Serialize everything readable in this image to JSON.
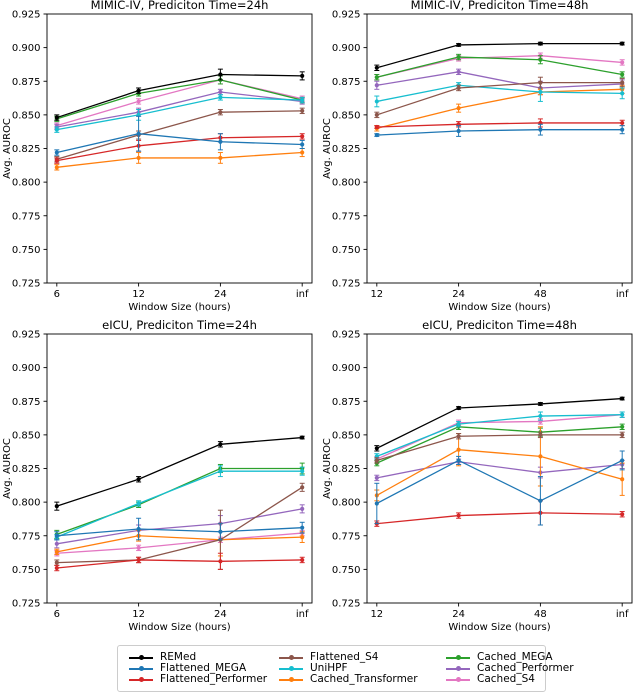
{
  "figure": {
    "ylabel": "Avg. AUROC",
    "xlabel": "Window Size (hours)",
    "ylim": [
      0.725,
      0.925
    ],
    "ytick_labels": [
      "0.725",
      "0.750",
      "0.775",
      "0.800",
      "0.825",
      "0.850",
      "0.875",
      "0.900",
      "0.925"
    ]
  },
  "colors": {
    "REMed": "#000000",
    "Flattened_MEGA": "#1f77b4",
    "Flattened_Performer": "#d62728",
    "Flattened_S4": "#8c564b",
    "UniHPF": "#17becf",
    "Cached_Transformer": "#ff7f0e",
    "Cached_MEGA": "#2ca02c",
    "Cached_Performer": "#9467bd",
    "Cached_S4": "#e377c2"
  },
  "chart_data": [
    {
      "type": "line",
      "title": "MIMIC-IV, Prediciton Time=24h",
      "xlabel": "Window Size (hours)",
      "ylabel": "Avg. AUROC",
      "ylim": [
        0.725,
        0.925
      ],
      "categories": [
        "6",
        "12",
        "24",
        "inf"
      ],
      "series": [
        {
          "name": "REMed",
          "color": "#000000",
          "values": [
            0.848,
            0.868,
            0.88,
            0.879
          ],
          "errors": [
            0.002,
            0.002,
            0.004,
            0.003
          ]
        },
        {
          "name": "Flattened_MEGA",
          "color": "#1f77b4",
          "values": [
            0.822,
            0.836,
            0.83,
            0.828
          ],
          "errors": [
            0.002,
            0.013,
            0.006,
            0.003
          ]
        },
        {
          "name": "Flattened_Performer",
          "color": "#d62728",
          "values": [
            0.816,
            0.827,
            0.833,
            0.834
          ],
          "errors": [
            0.002,
            0.004,
            0.003,
            0.002
          ]
        },
        {
          "name": "Flattened_S4",
          "color": "#8c564b",
          "values": [
            0.817,
            0.835,
            0.852,
            0.853
          ],
          "errors": [
            0.002,
            0.003,
            0.002,
            0.002
          ]
        },
        {
          "name": "UniHPF",
          "color": "#17becf",
          "values": [
            0.839,
            0.85,
            0.863,
            0.861
          ],
          "errors": [
            0.002,
            0.004,
            0.002,
            0.002
          ]
        },
        {
          "name": "Cached_Transformer",
          "color": "#ff7f0e",
          "values": [
            0.811,
            0.818,
            0.818,
            0.822
          ],
          "errors": [
            0.002,
            0.004,
            0.004,
            0.003
          ]
        },
        {
          "name": "Cached_MEGA",
          "color": "#2ca02c",
          "values": [
            0.847,
            0.866,
            0.876,
            0.861
          ],
          "errors": [
            0.002,
            0.002,
            0.003,
            0.002
          ]
        },
        {
          "name": "Cached_Performer",
          "color": "#9467bd",
          "values": [
            0.841,
            0.852,
            0.867,
            0.86
          ],
          "errors": [
            0.002,
            0.003,
            0.002,
            0.002
          ]
        },
        {
          "name": "Cached_S4",
          "color": "#e377c2",
          "values": [
            0.842,
            0.86,
            0.876,
            0.862
          ],
          "errors": [
            0.002,
            0.002,
            0.003,
            0.002
          ]
        }
      ]
    },
    {
      "type": "line",
      "title": "MIMIC-IV, Prediciton Time=48h",
      "xlabel": "Window Size (hours)",
      "ylabel": "Avg. AUROC",
      "ylim": [
        0.725,
        0.925
      ],
      "categories": [
        "12",
        "24",
        "48",
        "inf"
      ],
      "series": [
        {
          "name": "REMed",
          "color": "#000000",
          "values": [
            0.885,
            0.902,
            0.903,
            0.903
          ],
          "errors": [
            0.002,
            0.001,
            0.001,
            0.001
          ]
        },
        {
          "name": "Flattened_MEGA",
          "color": "#1f77b4",
          "values": [
            0.835,
            0.838,
            0.839,
            0.839
          ],
          "errors": [
            0.001,
            0.004,
            0.004,
            0.003
          ]
        },
        {
          "name": "Flattened_Performer",
          "color": "#d62728",
          "values": [
            0.841,
            0.843,
            0.844,
            0.844
          ],
          "errors": [
            0.001,
            0.002,
            0.003,
            0.002
          ]
        },
        {
          "name": "Flattened_S4",
          "color": "#8c564b",
          "values": [
            0.85,
            0.87,
            0.874,
            0.874
          ],
          "errors": [
            0.002,
            0.002,
            0.004,
            0.003
          ]
        },
        {
          "name": "UniHPF",
          "color": "#17becf",
          "values": [
            0.86,
            0.872,
            0.867,
            0.866
          ],
          "errors": [
            0.004,
            0.002,
            0.007,
            0.004
          ]
        },
        {
          "name": "Cached_Transformer",
          "color": "#ff7f0e",
          "values": [
            0.84,
            0.855,
            0.867,
            0.869
          ],
          "errors": [
            0.002,
            0.003,
            0.002,
            0.003
          ]
        },
        {
          "name": "Cached_MEGA",
          "color": "#2ca02c",
          "values": [
            0.878,
            0.893,
            0.891,
            0.88
          ],
          "errors": [
            0.002,
            0.002,
            0.003,
            0.002
          ]
        },
        {
          "name": "Cached_Performer",
          "color": "#9467bd",
          "values": [
            0.872,
            0.882,
            0.87,
            0.873
          ],
          "errors": [
            0.003,
            0.002,
            0.005,
            0.003
          ]
        },
        {
          "name": "Cached_S4",
          "color": "#e377c2",
          "values": [
            0.878,
            0.892,
            0.894,
            0.889
          ],
          "errors": [
            0.002,
            0.002,
            0.002,
            0.002
          ]
        }
      ]
    },
    {
      "type": "line",
      "title": "eICU, Prediciton Time=24h",
      "xlabel": "Window Size (hours)",
      "ylabel": "Avg. AUROC",
      "ylim": [
        0.725,
        0.925
      ],
      "categories": [
        "6",
        "12",
        "24",
        "inf"
      ],
      "series": [
        {
          "name": "REMed",
          "color": "#000000",
          "values": [
            0.797,
            0.817,
            0.843,
            0.848
          ],
          "errors": [
            0.003,
            0.002,
            0.002,
            0.001
          ]
        },
        {
          "name": "Flattened_MEGA",
          "color": "#1f77b4",
          "values": [
            0.775,
            0.78,
            0.778,
            0.781
          ],
          "errors": [
            0.003,
            0.008,
            0.006,
            0.004
          ]
        },
        {
          "name": "Flattened_Performer",
          "color": "#d62728",
          "values": [
            0.751,
            0.757,
            0.756,
            0.757
          ],
          "errors": [
            0.002,
            0.002,
            0.006,
            0.002
          ]
        },
        {
          "name": "Flattened_S4",
          "color": "#8c564b",
          "values": [
            0.755,
            0.757,
            0.772,
            0.811
          ],
          "errors": [
            0.002,
            0.002,
            0.022,
            0.003
          ]
        },
        {
          "name": "UniHPF",
          "color": "#17becf",
          "values": [
            0.774,
            0.799,
            0.823,
            0.823
          ],
          "errors": [
            0.002,
            0.002,
            0.004,
            0.003
          ]
        },
        {
          "name": "Cached_Transformer",
          "color": "#ff7f0e",
          "values": [
            0.763,
            0.775,
            0.772,
            0.774
          ],
          "errors": [
            0.002,
            0.004,
            0.012,
            0.004
          ]
        },
        {
          "name": "Cached_MEGA",
          "color": "#2ca02c",
          "values": [
            0.776,
            0.798,
            0.825,
            0.825
          ],
          "errors": [
            0.003,
            0.002,
            0.003,
            0.004
          ]
        },
        {
          "name": "Cached_Performer",
          "color": "#9467bd",
          "values": [
            0.769,
            0.779,
            0.784,
            0.795
          ],
          "errors": [
            0.003,
            0.004,
            0.006,
            0.003
          ]
        },
        {
          "name": "Cached_S4",
          "color": "#e377c2",
          "values": [
            0.762,
            0.766,
            0.772,
            0.777
          ],
          "errors": [
            0.002,
            0.002,
            0.002,
            0.002
          ]
        }
      ]
    },
    {
      "type": "line",
      "title": "eICU, Prediciton Time=48h",
      "xlabel": "Window Size (hours)",
      "ylabel": "Avg. AUROC",
      "ylim": [
        0.725,
        0.925
      ],
      "categories": [
        "12",
        "24",
        "48",
        "inf"
      ],
      "series": [
        {
          "name": "REMed",
          "color": "#000000",
          "values": [
            0.84,
            0.87,
            0.873,
            0.877
          ],
          "errors": [
            0.002,
            0.001,
            0.001,
            0.001
          ]
        },
        {
          "name": "Flattened_MEGA",
          "color": "#1f77b4",
          "values": [
            0.799,
            0.831,
            0.801,
            0.831
          ],
          "errors": [
            0.015,
            0.003,
            0.018,
            0.007
          ]
        },
        {
          "name": "Flattened_Performer",
          "color": "#d62728",
          "values": [
            0.784,
            0.79,
            0.792,
            0.791
          ],
          "errors": [
            0.002,
            0.002,
            0.009,
            0.002
          ]
        },
        {
          "name": "Flattened_S4",
          "color": "#8c564b",
          "values": [
            0.831,
            0.849,
            0.85,
            0.85
          ],
          "errors": [
            0.002,
            0.002,
            0.002,
            0.002
          ]
        },
        {
          "name": "UniHPF",
          "color": "#17becf",
          "values": [
            0.834,
            0.858,
            0.864,
            0.865
          ],
          "errors": [
            0.002,
            0.002,
            0.003,
            0.002
          ]
        },
        {
          "name": "Cached_Transformer",
          "color": "#ff7f0e",
          "values": [
            0.805,
            0.839,
            0.834,
            0.817
          ],
          "errors": [
            0.004,
            0.012,
            0.022,
            0.012
          ]
        },
        {
          "name": "Cached_MEGA",
          "color": "#2ca02c",
          "values": [
            0.829,
            0.856,
            0.852,
            0.856
          ],
          "errors": [
            0.002,
            0.002,
            0.003,
            0.002
          ]
        },
        {
          "name": "Cached_Performer",
          "color": "#9467bd",
          "values": [
            0.818,
            0.83,
            0.822,
            0.828
          ],
          "errors": [
            0.002,
            0.002,
            0.004,
            0.003
          ]
        },
        {
          "name": "Cached_S4",
          "color": "#e377c2",
          "values": [
            0.832,
            0.859,
            0.86,
            0.865
          ],
          "errors": [
            0.002,
            0.002,
            0.002,
            0.002
          ]
        }
      ]
    }
  ],
  "legend": {
    "rows": [
      [
        {
          "label": "REMed",
          "color": "#000000"
        },
        {
          "label": "Flattened_S4",
          "color": "#8c564b"
        },
        {
          "label": "Cached_MEGA",
          "color": "#2ca02c"
        }
      ],
      [
        {
          "label": "Flattened_MEGA",
          "color": "#1f77b4"
        },
        {
          "label": "UniHPF",
          "color": "#17becf"
        },
        {
          "label": "Cached_Performer",
          "color": "#9467bd"
        }
      ],
      [
        {
          "label": "Flattened_Performer",
          "color": "#d62728"
        },
        {
          "label": "Cached_Transformer",
          "color": "#ff7f0e"
        },
        {
          "label": "Cached_S4",
          "color": "#e377c2"
        }
      ]
    ]
  }
}
